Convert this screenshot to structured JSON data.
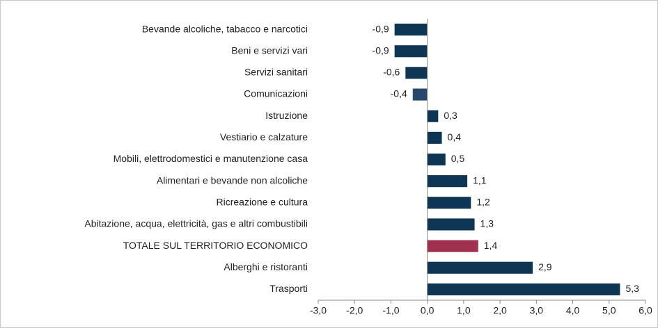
{
  "chart_data": {
    "type": "barh",
    "categories": [
      "Bevande alcoliche, tabacco e narcotici",
      "Beni e servizi vari",
      "Servizi sanitari",
      "Comunicazioni",
      "Istruzione",
      "Vestiario e calzature",
      "Mobili, elettrodomestici e manutenzione casa",
      "Alimentari e bevande non alcoliche",
      "Ricreazione e cultura",
      "Abitazione, acqua, elettricità, gas e altri combustibili",
      "TOTALE SUL TERRITORIO ECONOMICO",
      "Alberghi e ristoranti",
      "Trasporti"
    ],
    "values": [
      -0.9,
      -0.9,
      -0.6,
      -0.4,
      0.3,
      0.4,
      0.5,
      1.1,
      1.2,
      1.3,
      1.4,
      2.9,
      5.3
    ],
    "value_labels": [
      "-0,9",
      "-0,9",
      "-0,6",
      "-0,4",
      "0,3",
      "0,4",
      "0,5",
      "1,1",
      "1,2",
      "1,3",
      "1,4",
      "2,9",
      "5,3"
    ],
    "colors": [
      "#0e3553",
      "#0e3553",
      "#0e3553",
      "#27486b",
      "#0e3553",
      "#0e3553",
      "#0e3553",
      "#0e3553",
      "#0e3553",
      "#0e3553",
      "#a0304f",
      "#0e3553",
      "#0e3553"
    ],
    "xlim": [
      -3,
      6
    ],
    "xticks": [
      {
        "value": -3,
        "label": "-3,0"
      },
      {
        "value": -2,
        "label": "-2,0"
      },
      {
        "value": -1,
        "label": "-1,0"
      },
      {
        "value": 0,
        "label": "0,0"
      },
      {
        "value": 1,
        "label": "1,0"
      },
      {
        "value": 2,
        "label": "2,0"
      },
      {
        "value": 3,
        "label": "3,0"
      },
      {
        "value": 4,
        "label": "4,0"
      },
      {
        "value": 5,
        "label": "5,0"
      },
      {
        "value": 6,
        "label": "6,0"
      }
    ]
  }
}
